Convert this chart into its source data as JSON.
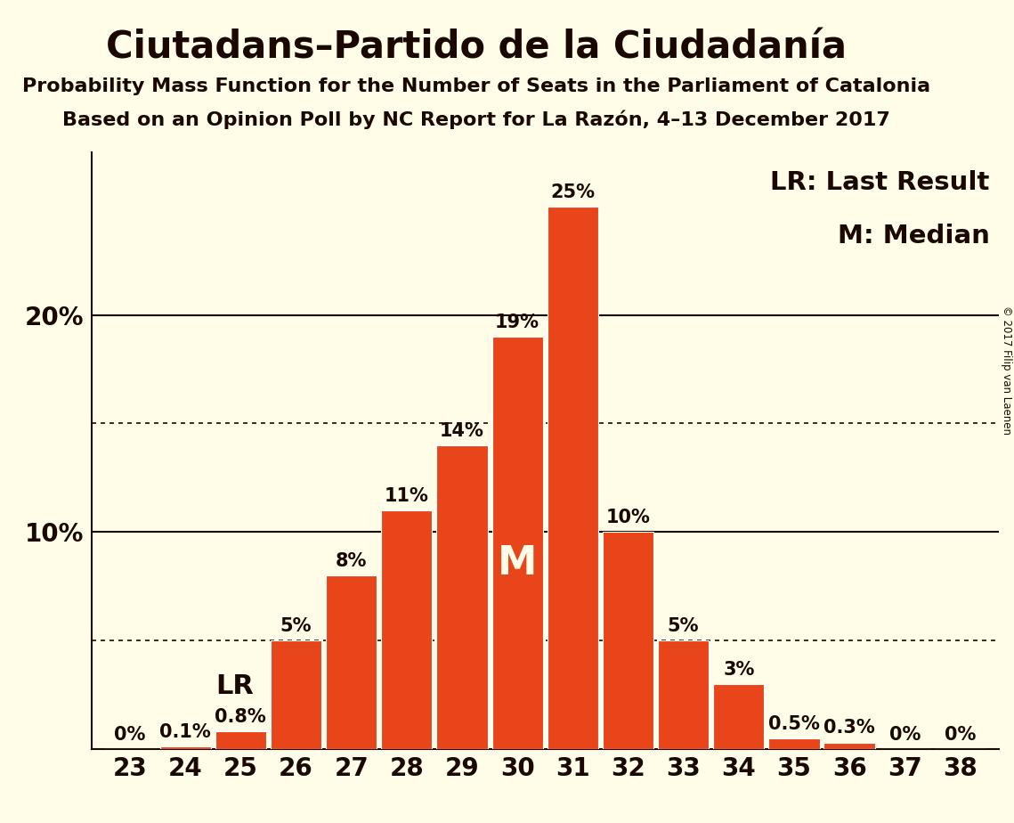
{
  "seats": [
    23,
    24,
    25,
    26,
    27,
    28,
    29,
    30,
    31,
    32,
    33,
    34,
    35,
    36,
    37,
    38
  ],
  "probabilities": [
    0.0,
    0.1,
    0.8,
    5.0,
    8.0,
    11.0,
    14.0,
    19.0,
    25.0,
    10.0,
    5.0,
    3.0,
    0.5,
    0.3,
    0.0,
    0.0
  ],
  "bar_color": "#e8451a",
  "background_color": "#fffde8",
  "title": "Ciutadans–Partido de la Ciudadanía",
  "subtitle1": "Probability Mass Function for the Number of Seats in the Parliament of Catalonia",
  "subtitle2": "Based on an Opinion Poll by NC Report for La Razón, 4–13 December 2017",
  "xlim": [
    22.3,
    38.7
  ],
  "ylim": [
    0,
    27.5
  ],
  "dotted_lines": [
    5,
    15
  ],
  "solid_lines": [
    10,
    20
  ],
  "LR_seat": 25,
  "Median_seat": 30,
  "title_fontsize": 30,
  "subtitle_fontsize": 16,
  "tick_fontsize": 20,
  "bar_label_fontsize": 15,
  "annotation_fontsize": 22,
  "legend_fontsize": 21,
  "copyright_text": "© 2017 Filip van Laenen",
  "bar_label_format": [
    "0%",
    "0.1%",
    "0.8%",
    "5%",
    "8%",
    "11%",
    "14%",
    "19%",
    "25%",
    "10%",
    "5%",
    "3%",
    "0.5%",
    "0.3%",
    "0%",
    "0%"
  ],
  "title_color": "#1a0800",
  "text_color": "#1a0800",
  "axis_color": "#1a0800"
}
